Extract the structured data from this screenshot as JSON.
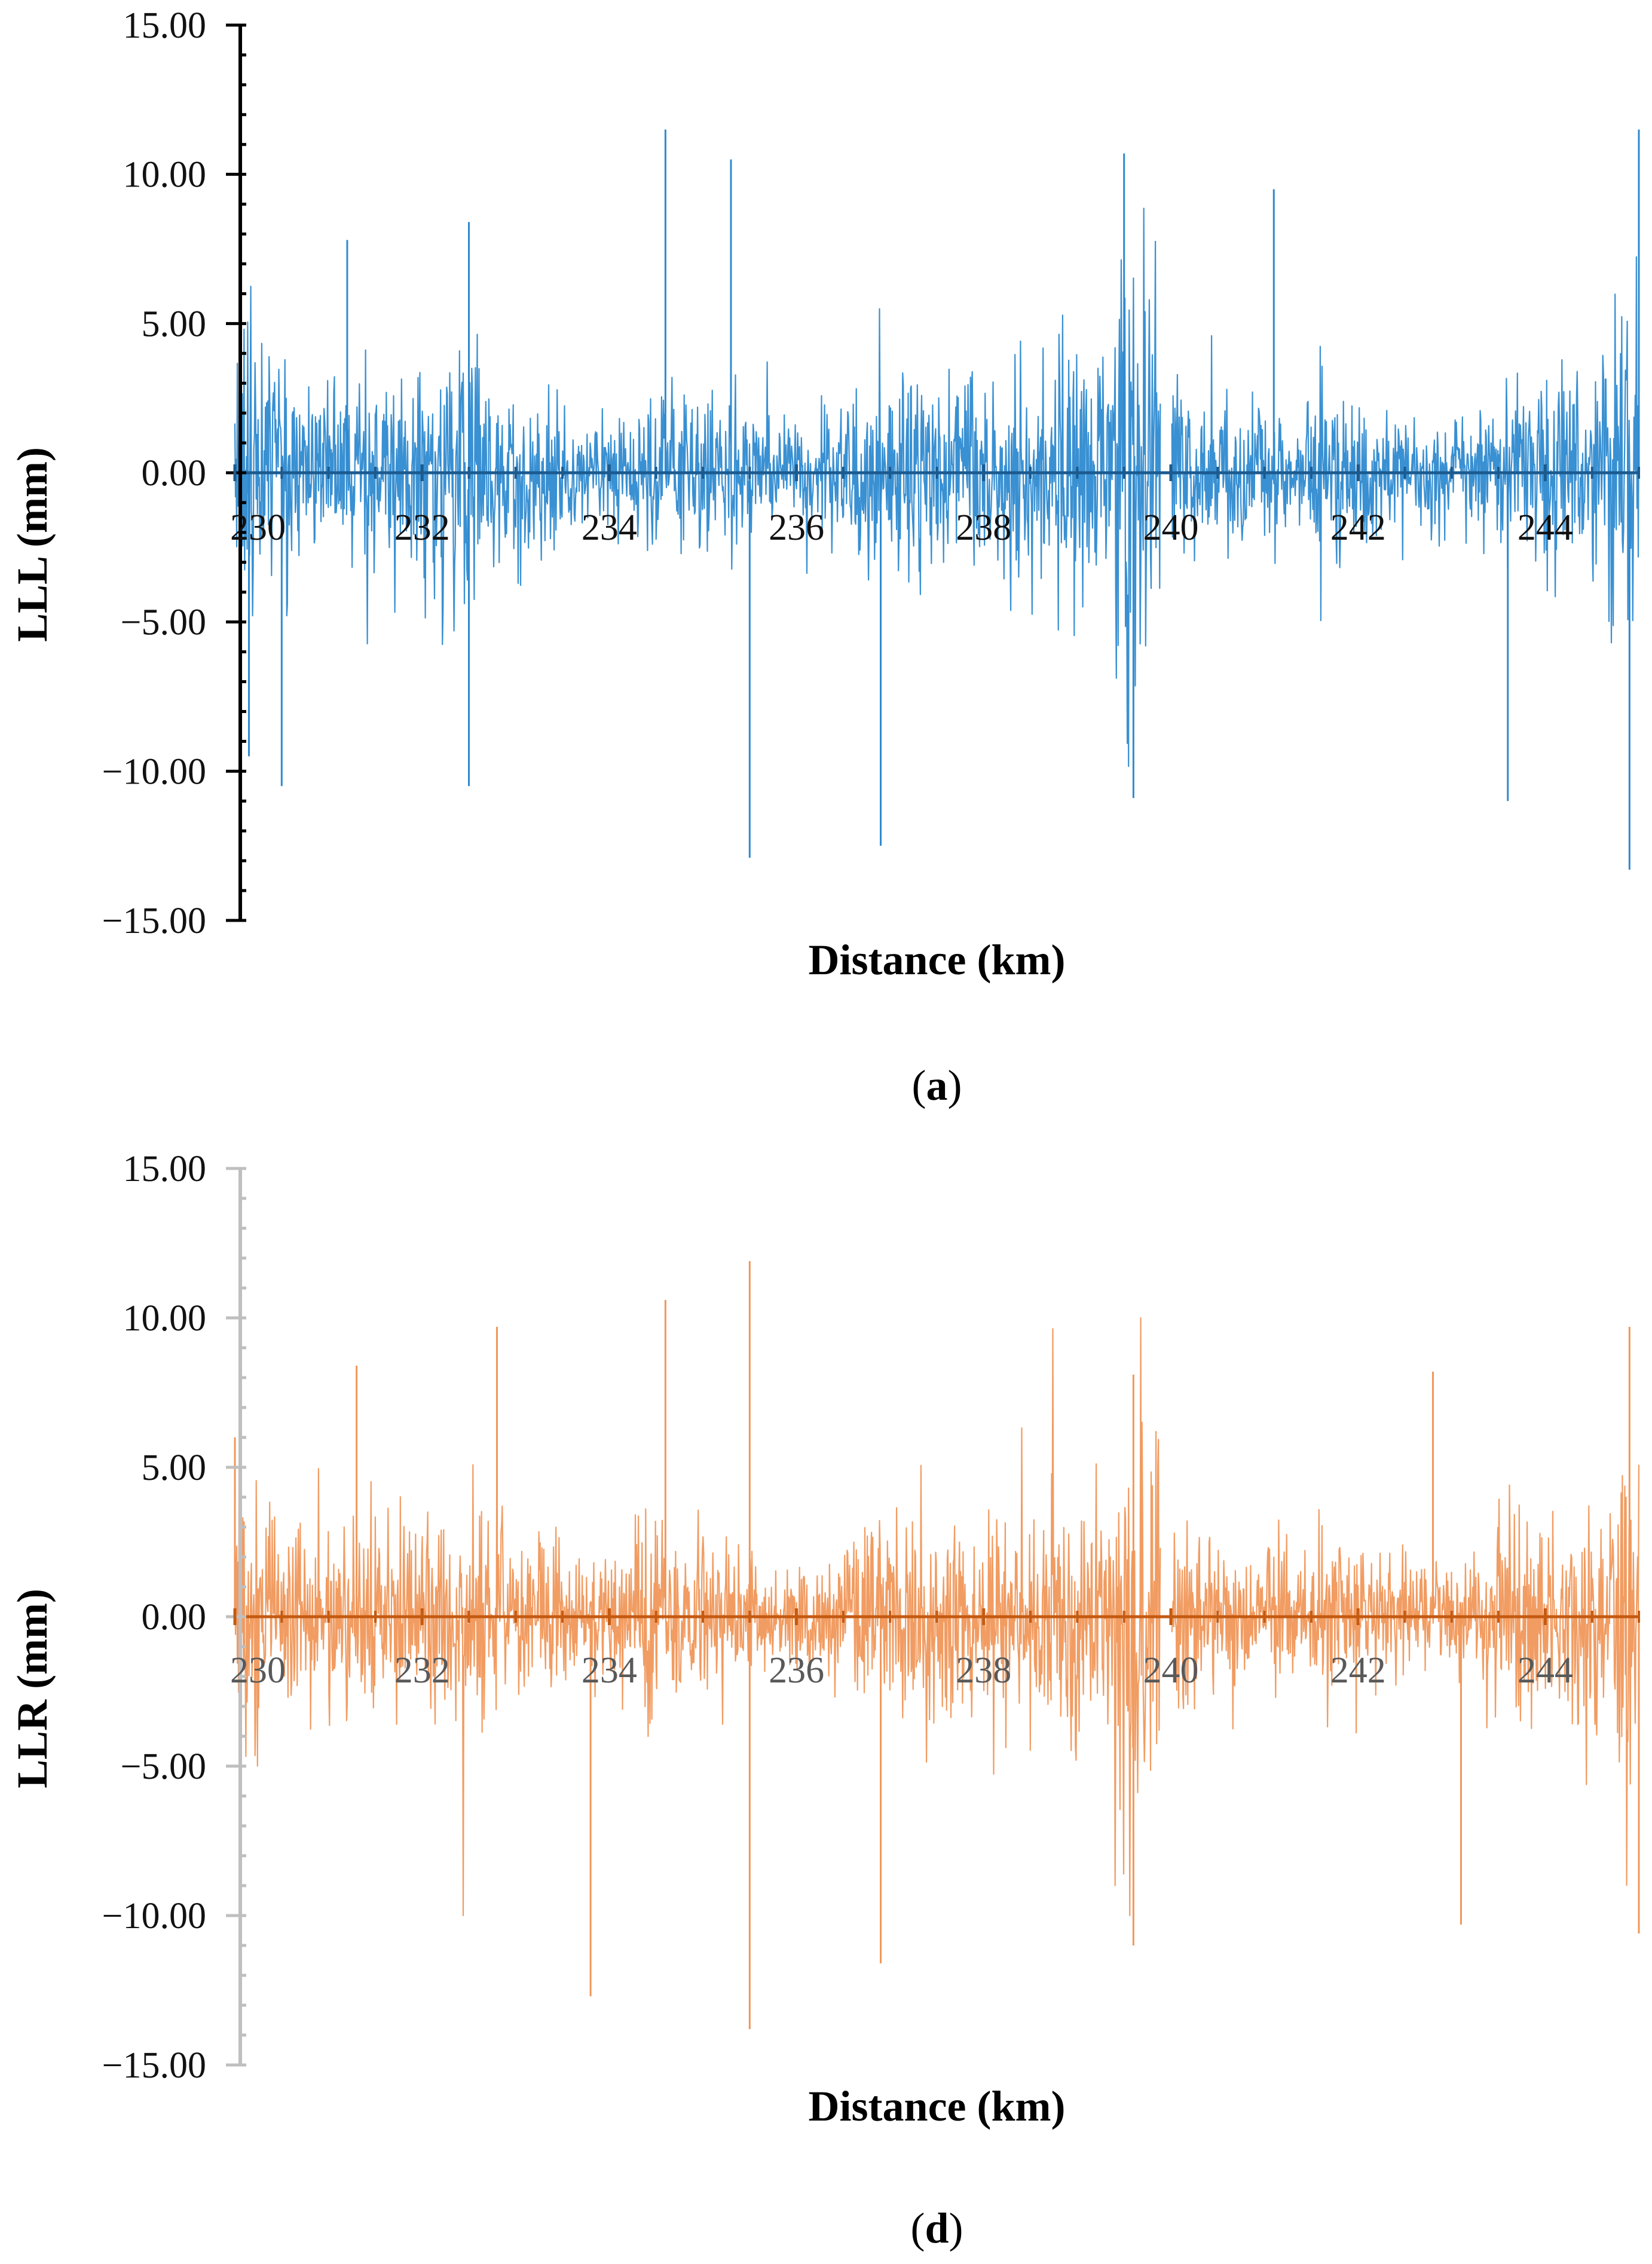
{
  "chart_data": [
    {
      "type": "line",
      "panel": "(a)",
      "caption_letter": "a",
      "series": [
        {
          "name": "LLL",
          "color": "#2e8ad0",
          "description": "Dense noise-like signal around zero",
          "peaks": [
            {
              "x": 230.15,
              "y": -9.5
            },
            {
              "x": 230.5,
              "y": -10.5
            },
            {
              "x": 231.2,
              "y": 7.8
            },
            {
              "x": 232.5,
              "y": 8.4
            },
            {
              "x": 232.5,
              "y": -10.5
            },
            {
              "x": 234.6,
              "y": 11.5
            },
            {
              "x": 235.3,
              "y": 10.5
            },
            {
              "x": 235.5,
              "y": -12.9
            },
            {
              "x": 236.9,
              "y": -12.5
            },
            {
              "x": 239.5,
              "y": 10.7
            },
            {
              "x": 239.6,
              "y": -10.9
            },
            {
              "x": 241.1,
              "y": 9.5
            },
            {
              "x": 243.6,
              "y": -11.0
            },
            {
              "x": 244.9,
              "y": -13.3
            },
            {
              "x": 245.0,
              "y": 11.5
            }
          ]
        }
      ],
      "zero_line_color": "#1b5a8f",
      "axis_color": "#000000",
      "x_ticks": [
        "230",
        "232",
        "234",
        "236",
        "238",
        "240",
        "242",
        "244"
      ],
      "y_ticks": [
        "15.00",
        "10.00",
        "5.00",
        "0.00",
        "−5.00",
        "−10.00",
        "−15.00"
      ],
      "xlabel": "Distance (km)",
      "ylabel": "LLL (mm)",
      "xlim": [
        230,
        245
      ],
      "ylim": [
        -15,
        15
      ],
      "gap_at": 239.95,
      "seed": 17
    },
    {
      "type": "line",
      "panel": "(d)",
      "caption_letter": "d",
      "series": [
        {
          "name": "LLR",
          "color": "#f0975a",
          "description": "Dense noise-like signal around zero",
          "peaks": [
            {
              "x": 230.0,
              "y": 6.0
            },
            {
              "x": 231.3,
              "y": 8.4
            },
            {
              "x": 232.8,
              "y": 9.7
            },
            {
              "x": 233.8,
              "y": -12.7
            },
            {
              "x": 234.6,
              "y": 10.6
            },
            {
              "x": 235.5,
              "y": 11.9
            },
            {
              "x": 235.5,
              "y": -13.8
            },
            {
              "x": 236.9,
              "y": -11.6
            },
            {
              "x": 239.6,
              "y": 8.1
            },
            {
              "x": 239.6,
              "y": -11.0
            },
            {
              "x": 242.8,
              "y": 8.2
            },
            {
              "x": 243.1,
              "y": -10.3
            },
            {
              "x": 244.9,
              "y": 9.7
            },
            {
              "x": 245.0,
              "y": -10.6
            }
          ]
        }
      ],
      "zero_line_color": "#c45a11",
      "axis_color": "#bfbfbf",
      "x_ticks": [
        "230",
        "232",
        "234",
        "236",
        "238",
        "240",
        "242",
        "244"
      ],
      "y_ticks": [
        "15.00",
        "10.00",
        "5.00",
        "0.00",
        "−5.00",
        "−10.00",
        "−15.00"
      ],
      "xlabel": "Distance (km)",
      "ylabel": "LLR (mm)",
      "xlim": [
        230,
        245
      ],
      "ylim": [
        -15,
        15
      ],
      "gap_at": 239.95,
      "seed": 53
    }
  ]
}
